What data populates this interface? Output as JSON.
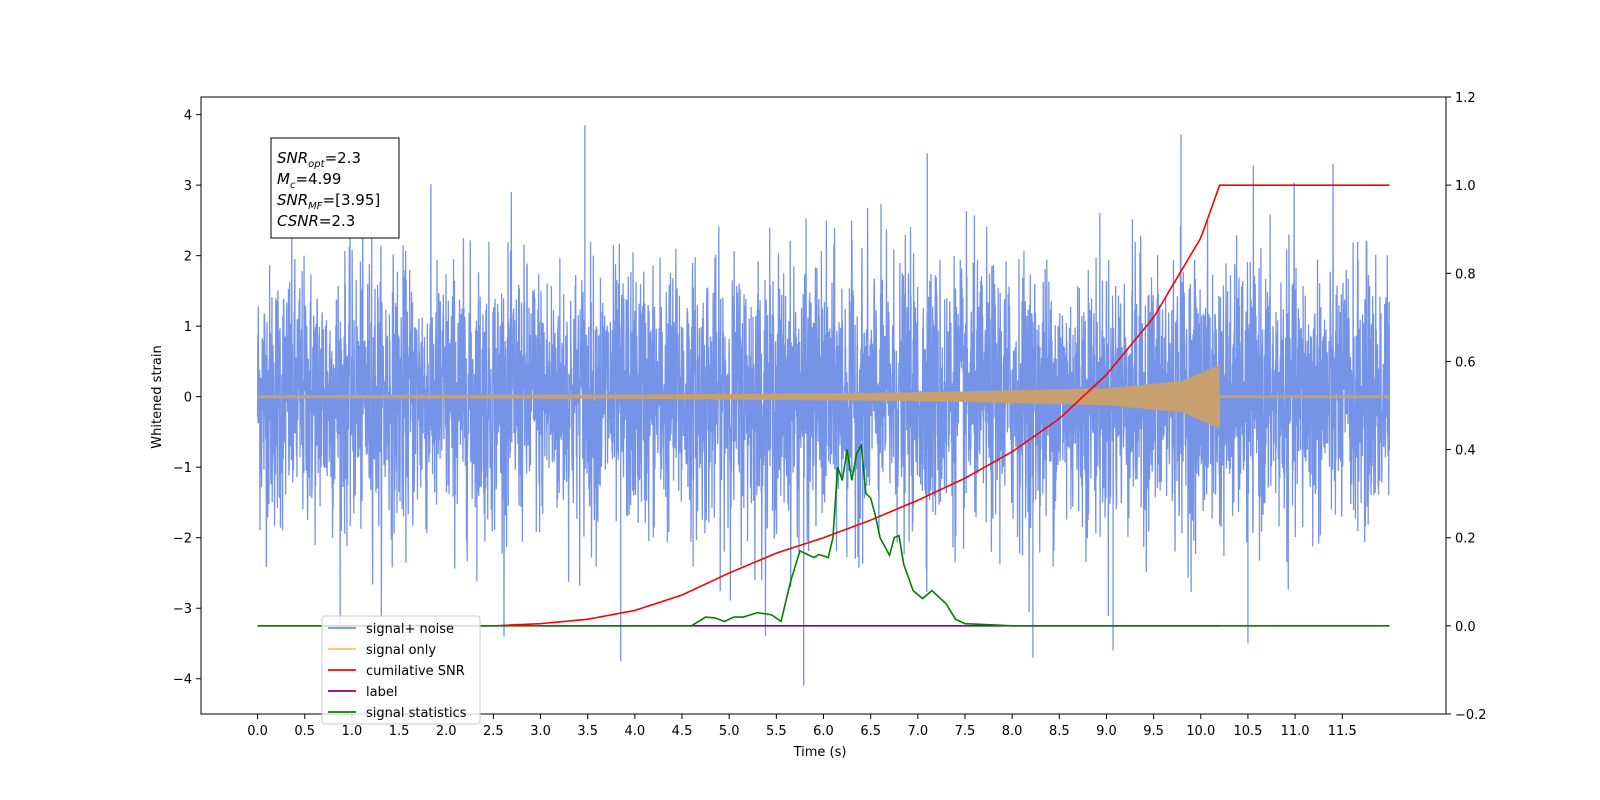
{
  "chart_data": {
    "type": "line",
    "xlabel": "Time (s)",
    "ylabel": "Whitened strain",
    "xlim": [
      -0.6,
      12.6
    ],
    "ylim": [
      -4.5,
      4.25
    ],
    "y2lim": [
      -0.2,
      1.2
    ],
    "grid": false,
    "legend_position": "lower-left",
    "x_ticks": [
      "0.0",
      "0.5",
      "1.0",
      "1.5",
      "2.0",
      "2.5",
      "3.0",
      "3.5",
      "4.0",
      "4.5",
      "5.0",
      "5.5",
      "6.0",
      "6.5",
      "7.0",
      "7.5",
      "8.0",
      "8.5",
      "9.0",
      "9.5",
      "10.0",
      "10.5",
      "11.0",
      "11.5"
    ],
    "y_ticks": [
      "4",
      "3",
      "2",
      "1",
      "0",
      "−1",
      "−2",
      "−3",
      "−4"
    ],
    "y2_ticks": [
      "1.2",
      "1.0",
      "0.8",
      "0.6",
      "0.4",
      "0.2",
      "0.0",
      "−0.2"
    ],
    "annotation": {
      "lines": [
        {
          "symbol": "SNR",
          "sub": "opt",
          "value": "=2.3"
        },
        {
          "symbol": "M",
          "sub": "c",
          "value": "=4.99"
        },
        {
          "symbol": "SNR",
          "sub": "MF",
          "value": "=[3.95]"
        },
        {
          "symbol": "CSNR",
          "sub": "",
          "value": "=2.3"
        }
      ]
    },
    "legend": [
      {
        "label": "signal+ noise",
        "color": "#6f8ee6"
      },
      {
        "label": "signal only",
        "color": "#ffbf5a"
      },
      {
        "label": "cumilative SNR",
        "color": "#ff0000"
      },
      {
        "label": "label",
        "color": "#800080"
      },
      {
        "label": "signal statistics",
        "color": "#008000"
      }
    ],
    "series": [
      {
        "name": "signal+ noise",
        "axis": "left",
        "color": "#6f8ee6",
        "x_range": [
          0.0,
          12.0
        ],
        "description_stats": {
          "typical_amplitude": 2.0,
          "max": 3.85,
          "min": -4.1
        },
        "spikes": [
          [
            3.47,
            3.85
          ],
          [
            9.79,
            3.72
          ],
          [
            1.21,
            3.48
          ],
          [
            7.1,
            3.45
          ],
          [
            5.79,
            -4.1
          ],
          [
            3.85,
            -3.75
          ],
          [
            8.22,
            -3.7
          ],
          [
            9.07,
            -3.6
          ],
          [
            10.5,
            -3.5
          ]
        ]
      },
      {
        "name": "signal only",
        "axis": "left",
        "color": "#c8a070",
        "x_range": [
          0.0,
          12.0
        ],
        "chirp_end": 10.2,
        "envelope": [
          [
            0.0,
            0.02
          ],
          [
            4.0,
            0.03
          ],
          [
            7.0,
            0.06
          ],
          [
            9.0,
            0.12
          ],
          [
            9.8,
            0.22
          ],
          [
            10.2,
            0.45
          ]
        ]
      },
      {
        "name": "cumilative SNR",
        "axis": "right",
        "color": "#ff0000",
        "x": [
          0.0,
          2.5,
          3.0,
          3.5,
          4.0,
          4.5,
          5.0,
          5.5,
          6.0,
          6.5,
          7.0,
          7.5,
          8.0,
          8.5,
          9.0,
          9.5,
          10.0,
          10.2,
          12.0
        ],
        "values": [
          0.0,
          0.0,
          0.005,
          0.015,
          0.035,
          0.07,
          0.12,
          0.165,
          0.2,
          0.24,
          0.285,
          0.335,
          0.395,
          0.47,
          0.57,
          0.7,
          0.88,
          1.0,
          1.0
        ]
      },
      {
        "name": "label",
        "axis": "right",
        "color": "#800080",
        "x": [
          3.0,
          10.2
        ],
        "values": [
          0.0,
          0.0
        ]
      },
      {
        "name": "signal statistics",
        "axis": "right",
        "color": "#008000",
        "x": [
          0.0,
          4.6,
          4.75,
          4.85,
          4.95,
          5.05,
          5.15,
          5.3,
          5.45,
          5.55,
          5.65,
          5.75,
          5.8,
          5.9,
          5.95,
          6.05,
          6.1,
          6.15,
          6.2,
          6.25,
          6.3,
          6.35,
          6.4,
          6.45,
          6.5,
          6.55,
          6.6,
          6.7,
          6.75,
          6.8,
          6.85,
          6.95,
          7.05,
          7.15,
          7.2,
          7.3,
          7.4,
          7.5,
          7.6,
          7.8,
          8.0,
          12.0
        ],
        "values": [
          0.0,
          0.0,
          0.02,
          0.018,
          0.01,
          0.02,
          0.02,
          0.03,
          0.025,
          0.01,
          0.1,
          0.17,
          0.165,
          0.155,
          0.162,
          0.155,
          0.2,
          0.36,
          0.33,
          0.4,
          0.33,
          0.39,
          0.41,
          0.3,
          0.29,
          0.25,
          0.2,
          0.16,
          0.2,
          0.205,
          0.14,
          0.08,
          0.062,
          0.08,
          0.07,
          0.05,
          0.015,
          0.005,
          0.004,
          0.002,
          0.0,
          0.0
        ]
      }
    ]
  }
}
